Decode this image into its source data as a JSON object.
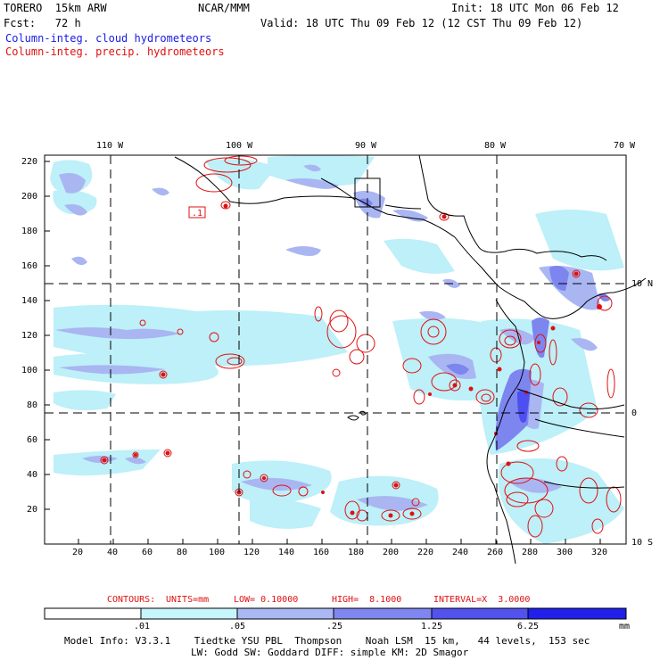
{
  "header": {
    "model_line": "TORERO  15km ARW",
    "center": "NCAR/MMM",
    "init": "Init: 18 UTC Mon 06 Feb 12",
    "fcst": "Fcst:   72 h",
    "valid": "Valid: 18 UTC Thu 09 Feb 12 (12 CST Thu 09 Feb 12)",
    "legend_cloud": "Column-integ. cloud hydrometeors",
    "legend_precip": "Column-integ. precip. hydrometeors"
  },
  "map": {
    "lon_labels": [
      "110 W",
      "100 W",
      "90 W",
      "80 W",
      "70 W"
    ],
    "lat_labels": [
      "10 N",
      "0",
      "10 S"
    ],
    "y_ticks": [
      "220",
      "200",
      "180",
      "160",
      "140",
      "120",
      "100",
      "80",
      "60",
      "40",
      "20"
    ],
    "x_ticks": [
      "20",
      "40",
      "60",
      "80",
      "100",
      "120",
      "140",
      "160",
      "180",
      "200",
      "220",
      "240",
      "260",
      "280",
      "300",
      "320"
    ],
    "contour_label": ".1",
    "colors": {
      "light": "#bdf0f8",
      "pale_blue": "#a9b6f2",
      "mid_blue": "#7d85ef",
      "deep_blue": "#4d4ff0",
      "contour": "#e01010",
      "coast": "#000000"
    }
  },
  "contour_info": {
    "label": "CONTOURS:",
    "units": "UNITS=mm",
    "low": "LOW= 0.10000",
    "high": "HIGH=  8.1000",
    "interval": "INTERVAL=X  3.0000"
  },
  "colorbar": {
    "ticks": [
      ".01",
      ".05",
      ".25",
      "1.25",
      "6.25"
    ],
    "unit": "mm",
    "colors": [
      "#ffffff",
      "#c6f6fb",
      "#aab8f4",
      "#7f86f0",
      "#5252ee",
      "#2020ea"
    ]
  },
  "footer": {
    "line1": "Model Info: V3.3.1    Tiedtke YSU PBL  Thompson    Noah LSM  15 km,   44 levels,  153 sec",
    "line2": "LW: Godd SW: Goddard DIFF: simple KM: 2D Smagor"
  }
}
